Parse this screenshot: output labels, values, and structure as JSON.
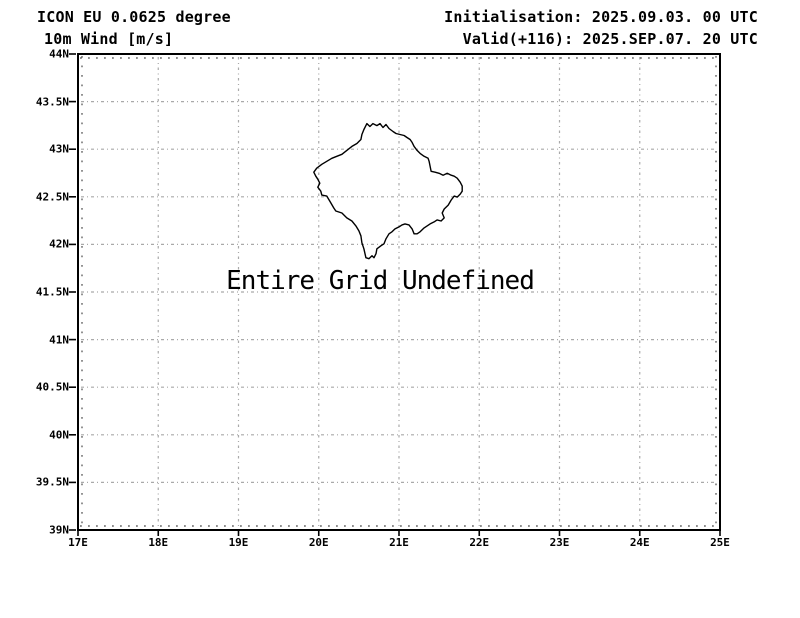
{
  "header": {
    "model_line": "ICON EU 0.0625 degree",
    "field_line": "10m Wind [m/s]",
    "init_line": "Initialisation: 2025.09.03. 00 UTC",
    "valid_line": "Valid(+116): 2025.SEP.07. 20 UTC"
  },
  "colors": {
    "background": "#ffffff",
    "text": "#000000",
    "frame": "#000000",
    "gridline": "#a9a9a9",
    "country_outline": "#000000"
  },
  "chart_data": {
    "type": "map",
    "title": "10m Wind [m/s]",
    "annotation": "Entire Grid Undefined",
    "outline_region": "Kosovo",
    "axes": {
      "lon_min": 17,
      "lon_max": 25,
      "lat_min": 39,
      "lat_max": 44,
      "lon_label_step_deg": 1,
      "lat_label_step_deg": 0.5,
      "minor_tick_step_deg": 0.1,
      "grid_style": "dash-dot gray"
    },
    "lon_ticks": [
      {
        "v": 17,
        "label": "17E"
      },
      {
        "v": 18,
        "label": "18E"
      },
      {
        "v": 19,
        "label": "19E"
      },
      {
        "v": 20,
        "label": "20E"
      },
      {
        "v": 21,
        "label": "21E"
      },
      {
        "v": 22,
        "label": "22E"
      },
      {
        "v": 23,
        "label": "23E"
      },
      {
        "v": 24,
        "label": "24E"
      },
      {
        "v": 25,
        "label": "25E"
      }
    ],
    "lat_ticks": [
      {
        "v": 44,
        "label": "44N"
      },
      {
        "v": 43.5,
        "label": "43.5N"
      },
      {
        "v": 43,
        "label": "43N"
      },
      {
        "v": 42.5,
        "label": "42.5N"
      },
      {
        "v": 42,
        "label": "42N"
      },
      {
        "v": 41.5,
        "label": "41.5N"
      },
      {
        "v": 41,
        "label": "41N"
      },
      {
        "v": 40.5,
        "label": "40.5N"
      },
      {
        "v": 40,
        "label": "40N"
      },
      {
        "v": 39.5,
        "label": "39.5N"
      },
      {
        "v": 39,
        "label": "39N"
      }
    ],
    "outline": [
      [
        20.6,
        43.269
      ],
      [
        20.638,
        43.238
      ],
      [
        20.675,
        43.269
      ],
      [
        20.725,
        43.248
      ],
      [
        20.763,
        43.269
      ],
      [
        20.8,
        43.228
      ],
      [
        20.838,
        43.259
      ],
      [
        20.875,
        43.217
      ],
      [
        20.925,
        43.186
      ],
      [
        20.963,
        43.165
      ],
      [
        21.013,
        43.154
      ],
      [
        21.063,
        43.144
      ],
      [
        21.1,
        43.123
      ],
      [
        21.138,
        43.102
      ],
      [
        21.163,
        43.071
      ],
      [
        21.188,
        43.029
      ],
      [
        21.225,
        42.987
      ],
      [
        21.263,
        42.956
      ],
      [
        21.313,
        42.925
      ],
      [
        21.363,
        42.904
      ],
      [
        21.375,
        42.873
      ],
      [
        21.388,
        42.82
      ],
      [
        21.4,
        42.768
      ],
      [
        21.45,
        42.758
      ],
      [
        21.5,
        42.747
      ],
      [
        21.55,
        42.727
      ],
      [
        21.6,
        42.747
      ],
      [
        21.65,
        42.727
      ],
      [
        21.688,
        42.716
      ],
      [
        21.725,
        42.695
      ],
      [
        21.763,
        42.653
      ],
      [
        21.788,
        42.612
      ],
      [
        21.788,
        42.559
      ],
      [
        21.763,
        42.528
      ],
      [
        21.725,
        42.497
      ],
      [
        21.688,
        42.507
      ],
      [
        21.65,
        42.466
      ],
      [
        21.613,
        42.413
      ],
      [
        21.563,
        42.372
      ],
      [
        21.538,
        42.33
      ],
      [
        21.563,
        42.278
      ],
      [
        21.525,
        42.246
      ],
      [
        21.475,
        42.257
      ],
      [
        21.438,
        42.236
      ],
      [
        21.388,
        42.215
      ],
      [
        21.35,
        42.194
      ],
      [
        21.313,
        42.173
      ],
      [
        21.263,
        42.132
      ],
      [
        21.225,
        42.111
      ],
      [
        21.188,
        42.111
      ],
      [
        21.163,
        42.163
      ],
      [
        21.125,
        42.205
      ],
      [
        21.075,
        42.215
      ],
      [
        21.038,
        42.205
      ],
      [
        21.0,
        42.184
      ],
      [
        20.95,
        42.163
      ],
      [
        20.913,
        42.132
      ],
      [
        20.875,
        42.111
      ],
      [
        20.838,
        42.059
      ],
      [
        20.813,
        42.006
      ],
      [
        20.775,
        41.985
      ],
      [
        20.725,
        41.954
      ],
      [
        20.713,
        41.902
      ],
      [
        20.688,
        41.86
      ],
      [
        20.663,
        41.881
      ],
      [
        20.625,
        41.85
      ],
      [
        20.588,
        41.86
      ],
      [
        20.563,
        41.954
      ],
      [
        20.538,
        42.017
      ],
      [
        20.525,
        42.09
      ],
      [
        20.5,
        42.142
      ],
      [
        20.463,
        42.194
      ],
      [
        20.413,
        42.246
      ],
      [
        20.35,
        42.278
      ],
      [
        20.288,
        42.33
      ],
      [
        20.213,
        42.351
      ],
      [
        20.188,
        42.382
      ],
      [
        20.138,
        42.455
      ],
      [
        20.1,
        42.507
      ],
      [
        20.038,
        42.518
      ],
      [
        20.025,
        42.559
      ],
      [
        19.988,
        42.601
      ],
      [
        20.013,
        42.643
      ],
      [
        19.988,
        42.685
      ],
      [
        19.963,
        42.716
      ],
      [
        19.938,
        42.758
      ],
      [
        19.975,
        42.8
      ],
      [
        20.038,
        42.841
      ],
      [
        20.1,
        42.873
      ],
      [
        20.163,
        42.904
      ],
      [
        20.225,
        42.925
      ],
      [
        20.288,
        42.946
      ],
      [
        20.35,
        42.987
      ],
      [
        20.413,
        43.029
      ],
      [
        20.475,
        43.06
      ],
      [
        20.525,
        43.102
      ],
      [
        20.538,
        43.154
      ],
      [
        20.563,
        43.207
      ]
    ]
  }
}
